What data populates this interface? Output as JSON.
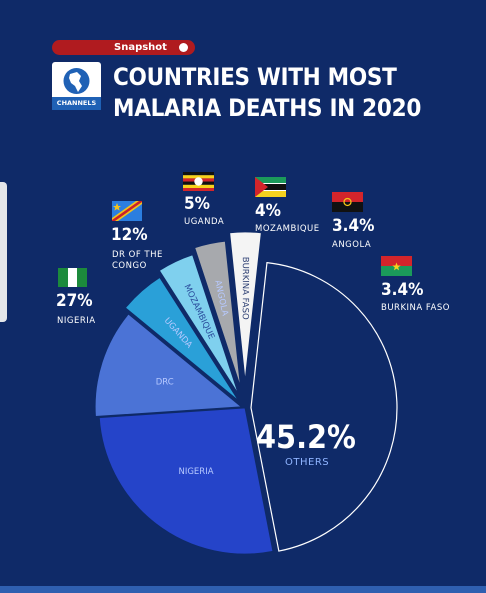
{
  "header": {
    "badge": "Snapshot",
    "logo_text": "CHANNELS",
    "title_line1": "COUNTRIES WITH MOST",
    "title_line2": "MALARIA DEATHS IN 2020"
  },
  "colors": {
    "background": "#0f2a68",
    "badge": "#b01b1f",
    "nigeria": "#2544c9",
    "drc": "#4b73d6",
    "uganda": "#2aa0d8",
    "mozambique": "#7fd0ee",
    "angola": "#a7a9ad",
    "burkina_faso": "#f4f4f4",
    "others": "#0f2a68"
  },
  "chart_data": {
    "type": "pie",
    "title": "COUNTRIES WITH MOST MALARIA DEATHS IN 2020",
    "unit": "%",
    "slices": [
      {
        "key": "nigeria",
        "label": "NIGERIA",
        "slice_label": "NIGERIA",
        "value": 27,
        "value_text": "27%",
        "flag": "nigeria-flag"
      },
      {
        "key": "drc",
        "label": "DR OF THE CONGO",
        "slice_label": "DRC",
        "value": 12,
        "value_text": "12%",
        "flag": "drc-flag"
      },
      {
        "key": "uganda",
        "label": "UGANDA",
        "slice_label": "UGANDA",
        "value": 5,
        "value_text": "5%",
        "flag": "uganda-flag"
      },
      {
        "key": "mozambique",
        "label": "MOZAMBIQUE",
        "slice_label": "MOZAMBIQUE",
        "value": 4,
        "value_text": "4%",
        "flag": "mozambique-flag"
      },
      {
        "key": "angola",
        "label": "ANGOLA",
        "slice_label": "ANGOLA",
        "value": 3.4,
        "value_text": "3.4%",
        "flag": "angola-flag"
      },
      {
        "key": "burkina_faso",
        "label": "BURKINA FASO",
        "slice_label": "BURKINA FASO",
        "value": 3.4,
        "value_text": "3.4%",
        "flag": "burkina-faso-flag"
      },
      {
        "key": "others",
        "label": "OTHERS",
        "slice_label": "",
        "value": 45.2,
        "value_text": "45.2%"
      }
    ]
  }
}
